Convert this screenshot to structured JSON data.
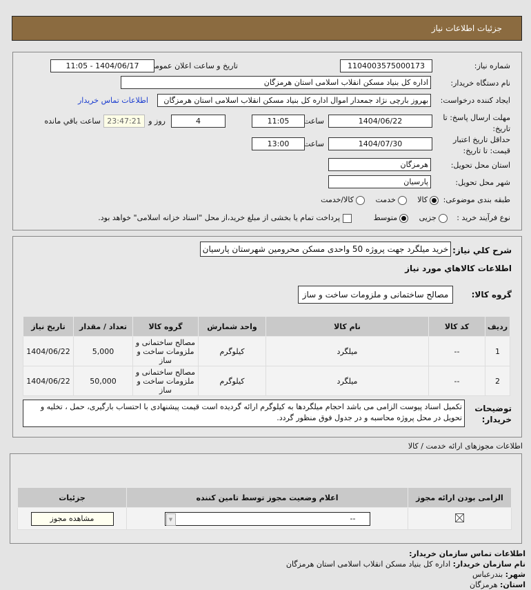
{
  "header": {
    "title": "جزئیات اطلاعات نیاز"
  },
  "fields": {
    "need_number_label": "شماره نیاز:",
    "need_number": "1104003575000173",
    "announce_label": "تاریخ و ساعت اعلان عمومی:",
    "announce_value": "1404/06/17 - 11:05",
    "buyer_label": "نام دستگاه خریدار:",
    "buyer_value": "اداره کل بنیاد مسکن انقلاب اسلامی استان هرمزگان",
    "creator_label": "ایجاد کننده درخواست:",
    "creator_value": "بهروز  بارچی نژاد جمعدار اموال اداره کل بنیاد مسکن انقلاب اسلامی استان هرمزگان",
    "contact_link": "اطلاعات تماس خریدار",
    "deadline_label": "مهلت ارسال پاسخ: تا تاریخ:",
    "deadline_date": "1404/06/22",
    "time_label": "ساعت",
    "deadline_time": "11:05",
    "days": "4",
    "days_label": "روز و",
    "remaining": "23:47:21",
    "remaining_label": "ساعت باقي مانده",
    "validity_label": "حداقل تاریخ اعتبار قیمت: تا تاریخ:",
    "validity_date": "1404/07/30",
    "validity_time": "13:00",
    "province_label": "استان محل تحویل:",
    "province": "هرمزگان",
    "city_label": "شهر محل تحویل:",
    "city": "پارسیان",
    "category_label": "طبقه بندی موضوعی:",
    "category_options": [
      "کالا",
      "خدمت",
      "کالا/خدمت"
    ],
    "category_selected": "کالا",
    "process_label": "نوع فرآیند خرید :",
    "process_options": [
      "جزیی",
      "متوسط"
    ],
    "process_selected": "متوسط",
    "payment_note": "پرداخت تمام یا بخشی از مبلغ خرید،از محل \"اسناد خزانه اسلامی\" خواهد بود."
  },
  "summary": {
    "label": "شرح كلي نياز:",
    "value": "خرید میلگرد جهت پروژه 50 واحدی مسکن محرومین شهرستان پارسیان",
    "goods_title": "اطلاعات كالاهاي مورد نياز",
    "group_label": "گروه کالا:",
    "group_value": "مصالح ساختمانی و ملزومات ساخت و ساز"
  },
  "goods_table": {
    "headers": [
      "ردیف",
      "کد کالا",
      "نام کالا",
      "واحد شمارش",
      "گروه کالا",
      "تعداد / مقدار",
      "تاریخ نیاز"
    ],
    "rows": [
      [
        "1",
        "--",
        "میلگرد",
        "کیلوگرم",
        "مصالح ساختمانی و ملزومات ساخت و ساز",
        "5,000",
        "1404/06/22"
      ],
      [
        "2",
        "--",
        "میلگرد",
        "کیلوگرم",
        "مصالح ساختمانی و ملزومات ساخت و ساز",
        "50,000",
        "1404/06/22"
      ]
    ]
  },
  "notes": {
    "label": "توضیحات خریدار:",
    "value": "تکمیل اسناد پیوست الزامی می باشد احجام میلگردها به کیلوگرم ارائه گردیده است قیمت پیشنهادی با احتساب بارگیری، حمل ، تخلیه و تحویل در محل پروژه محاسبه و در جدول فوق منظور گردد."
  },
  "permits": {
    "title": "اطلاعات مجوزهای ارائه خدمت / کالا",
    "headers": [
      "الزامی بودن ارائه مجوز",
      "اعلام وضعیت مجوز توسط تامین کننده",
      "جزئیات"
    ],
    "status_value": "--",
    "view_button": "مشاهده مجوز"
  },
  "contact": {
    "title": "اطلاعات تماس سازمان خریدار:",
    "org_label": "نام سازمان خریدار:",
    "org": "اداره کل بنیاد مسکن انقلاب اسلامی استان هرمزگان",
    "city_label": "شهر:",
    "city": "بندرعباس",
    "province_label": "استان:",
    "province": "هرمزگان"
  }
}
